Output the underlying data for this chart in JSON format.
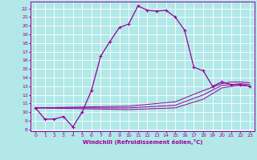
{
  "xlabel": "Windchill (Refroidissement éolien,°C)",
  "bg_color": "#b2e8e8",
  "line_color": "#990099",
  "grid_color": "#ffffff",
  "xlim": [
    -0.5,
    23.5
  ],
  "ylim": [
    7.8,
    22.8
  ],
  "yticks": [
    8,
    9,
    10,
    11,
    12,
    13,
    14,
    15,
    16,
    17,
    18,
    19,
    20,
    21,
    22
  ],
  "xticks": [
    0,
    1,
    2,
    3,
    4,
    5,
    6,
    7,
    8,
    9,
    10,
    11,
    12,
    13,
    14,
    15,
    16,
    17,
    18,
    19,
    20,
    21,
    22,
    23
  ],
  "main_curve": {
    "x": [
      0,
      1,
      2,
      3,
      4,
      5,
      6,
      7,
      8,
      9,
      10,
      11,
      12,
      13,
      14,
      15,
      16,
      17,
      18,
      19,
      20,
      21,
      22,
      23
    ],
    "y": [
      10.5,
      9.2,
      9.2,
      9.5,
      8.3,
      10.0,
      12.5,
      16.5,
      18.2,
      19.8,
      20.2,
      22.3,
      21.8,
      21.7,
      21.8,
      21.0,
      19.5,
      15.2,
      14.8,
      13.0,
      13.5,
      13.2,
      13.2,
      13.0
    ]
  },
  "flat_curves": [
    {
      "x": [
        0,
        10,
        15,
        18,
        20,
        21,
        22,
        23
      ],
      "y": [
        10.5,
        10.3,
        10.5,
        11.5,
        12.8,
        13.0,
        13.1,
        13.0
      ]
    },
    {
      "x": [
        0,
        10,
        15,
        18,
        20,
        21,
        22,
        23
      ],
      "y": [
        10.5,
        10.5,
        10.8,
        12.0,
        13.1,
        13.2,
        13.3,
        13.2
      ]
    },
    {
      "x": [
        0,
        10,
        15,
        18,
        20,
        21,
        22,
        23
      ],
      "y": [
        10.5,
        10.7,
        11.2,
        12.5,
        13.3,
        13.5,
        13.5,
        13.4
      ]
    }
  ]
}
